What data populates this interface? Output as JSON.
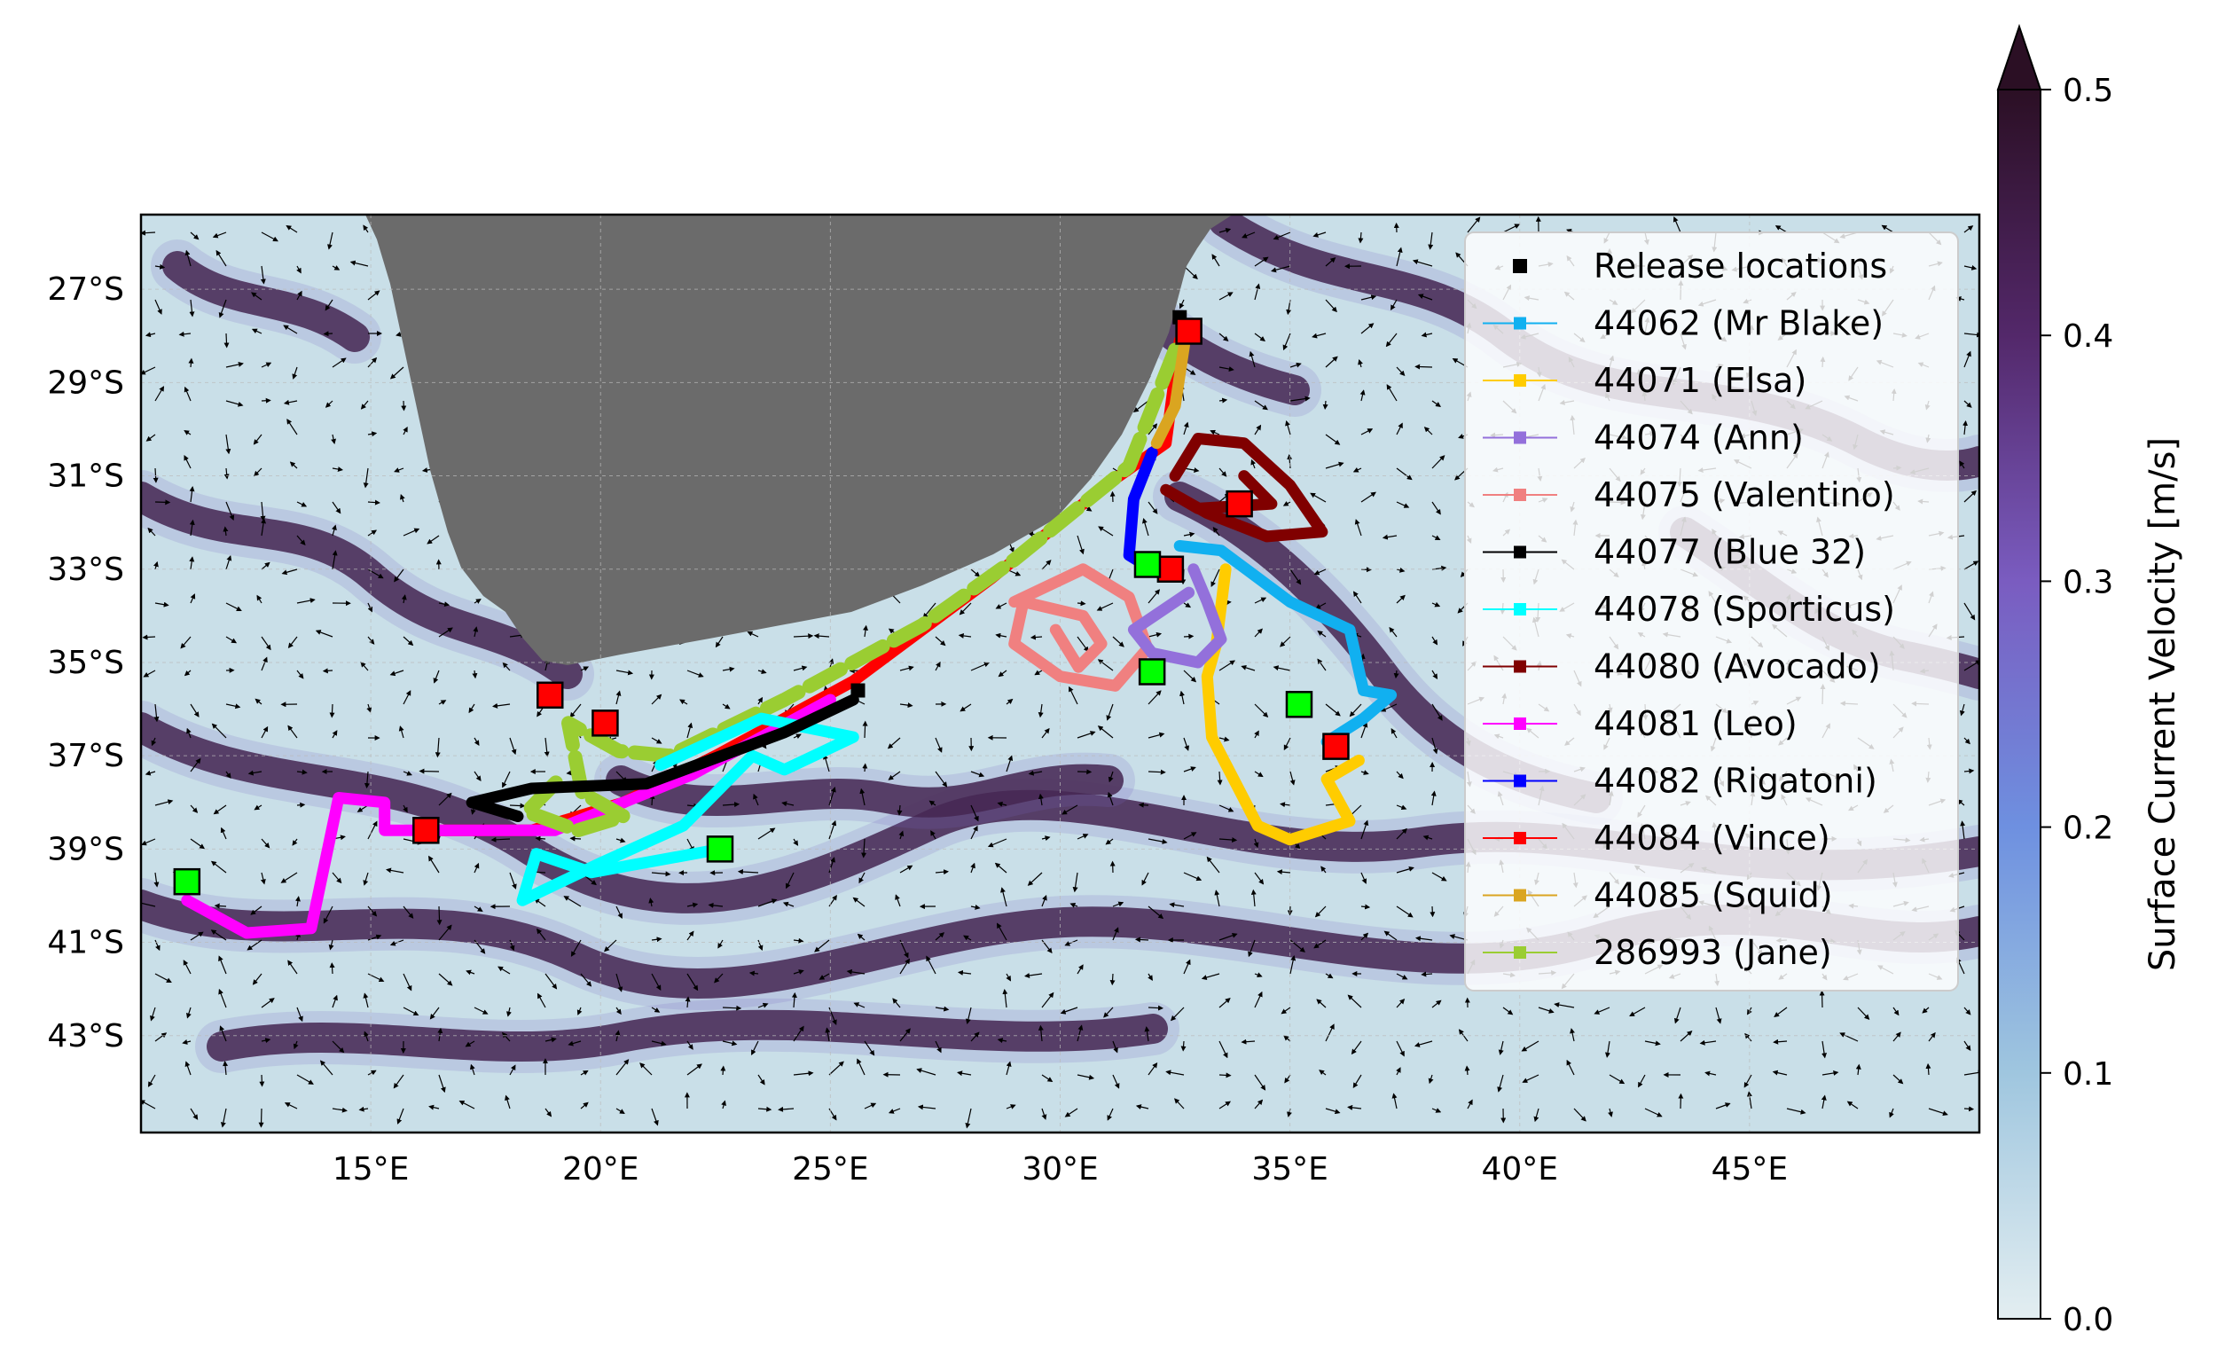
{
  "map": {
    "lon_range": [
      10,
      50
    ],
    "lat_range": [
      -45,
      -25
    ],
    "lon_ticks": [
      "15°E",
      "20°E",
      "25°E",
      "30°E",
      "35°E",
      "40°E",
      "45°E"
    ],
    "lat_ticks": [
      "27°S",
      "29°S",
      "31°S",
      "33°S",
      "35°S",
      "37°S",
      "39°S",
      "41°S",
      "43°S"
    ],
    "land_color": "#6b6b6b",
    "ocean_low_color": "#dbeaf0",
    "ocean_high_color": "#2b0f24",
    "gridlines": true
  },
  "colorbar": {
    "label": "Surface Current Velocity [m/s]",
    "ticks": [
      "0.0",
      "0.1",
      "0.2",
      "0.3",
      "0.4",
      "0.5"
    ],
    "range": [
      0,
      0.5
    ],
    "extend": "max"
  },
  "legend": {
    "placement": "upper-right",
    "items": [
      {
        "label": "Release locations",
        "color": "#000000",
        "kind": "marker"
      },
      {
        "label": "44062 (Mr Blake)",
        "color": "#11b0f0",
        "kind": "line"
      },
      {
        "label": "44071 (Elsa)",
        "color": "#ffcc00",
        "kind": "line"
      },
      {
        "label": "44074 (Ann)",
        "color": "#9370db",
        "kind": "line"
      },
      {
        "label": "44075 (Valentino)",
        "color": "#f08080",
        "kind": "line"
      },
      {
        "label": "44077 (Blue 32)",
        "color": "#000000",
        "kind": "line"
      },
      {
        "label": "44078 (Sporticus)",
        "color": "#00ffff",
        "kind": "line"
      },
      {
        "label": "44080 (Avocado)",
        "color": "#800000",
        "kind": "line"
      },
      {
        "label": "44081 (Leo)",
        "color": "#ff00ff",
        "kind": "line"
      },
      {
        "label": "44082 (Rigatoni)",
        "color": "#0000ff",
        "kind": "line"
      },
      {
        "label": "44084 (Vince)",
        "color": "#ff0000",
        "kind": "line"
      },
      {
        "label": "44085 (Squid)",
        "color": "#daa520",
        "kind": "line"
      },
      {
        "label": "286993 (Jane)",
        "color": "#9acd32",
        "kind": "line"
      }
    ]
  },
  "chart_data": {
    "type": "map",
    "tracks": [
      {
        "name": "44084 (Vince)",
        "color": "#ff0000",
        "points": [
          [
            32.6,
            -28.1
          ],
          [
            32.3,
            -30.3
          ],
          [
            31,
            -31.2
          ],
          [
            28.5,
            -33.2
          ],
          [
            25.5,
            -35.4
          ],
          [
            22.5,
            -37
          ],
          [
            20.5,
            -38
          ],
          [
            18.5,
            -38.6
          ],
          [
            16.2,
            -38.6
          ]
        ]
      },
      {
        "name": "44081 (Leo)",
        "color": "#ff00ff",
        "points": [
          [
            25,
            -35.8
          ],
          [
            22,
            -37.4
          ],
          [
            19,
            -38.6
          ],
          [
            16.5,
            -38.6
          ],
          [
            15.3,
            -38.6
          ],
          [
            15.3,
            -38
          ],
          [
            14.3,
            -37.9
          ],
          [
            13.7,
            -40.7
          ],
          [
            12.3,
            -40.8
          ],
          [
            11,
            -40.1
          ]
        ]
      },
      {
        "name": "286993 (Jane)",
        "color": "#9acd32",
        "points": [
          [
            32.5,
            -28.3
          ],
          [
            31.5,
            -30.8
          ],
          [
            29,
            -32.8
          ],
          [
            27,
            -34.2
          ],
          [
            24,
            -35.8
          ],
          [
            21.5,
            -37
          ],
          [
            20.4,
            -36.9
          ],
          [
            19.3,
            -36.3
          ],
          [
            19.6,
            -37.8
          ],
          [
            20.5,
            -38.3
          ],
          [
            19.5,
            -38.6
          ],
          [
            18.4,
            -38.2
          ],
          [
            19.2,
            -37.4
          ]
        ]
      },
      {
        "name": "44078 (Sporticus)",
        "color": "#00ffff",
        "points": [
          [
            21.3,
            -37.2
          ],
          [
            23.5,
            -36.2
          ],
          [
            25.5,
            -36.6
          ],
          [
            24,
            -37.3
          ],
          [
            23.3,
            -37
          ],
          [
            21.8,
            -38.5
          ],
          [
            20,
            -39.3
          ],
          [
            18.3,
            -40.1
          ],
          [
            18.6,
            -39.1
          ],
          [
            19.8,
            -39.5
          ],
          [
            22.6,
            -39
          ]
        ]
      },
      {
        "name": "44077 (Blue 32)",
        "color": "#000000",
        "points": [
          [
            25.5,
            -35.8
          ],
          [
            24,
            -36.5
          ],
          [
            21,
            -37.6
          ],
          [
            18.5,
            -37.7
          ],
          [
            17.2,
            -38
          ],
          [
            18.2,
            -38.3
          ]
        ]
      },
      {
        "name": "44082 (Rigatoni)",
        "color": "#0000ff",
        "points": [
          [
            32,
            -30.5
          ],
          [
            31.6,
            -31.5
          ],
          [
            31.5,
            -32.7
          ],
          [
            32,
            -33
          ]
        ]
      },
      {
        "name": "44080 (Avocado)",
        "color": "#800000",
        "points": [
          [
            32.5,
            -31
          ],
          [
            33,
            -30.2
          ],
          [
            34,
            -30.3
          ],
          [
            35,
            -31.2
          ],
          [
            35.7,
            -32.2
          ],
          [
            34.5,
            -32.3
          ],
          [
            33.2,
            -31.8
          ],
          [
            32.3,
            -31.3
          ],
          [
            33,
            -31.7
          ],
          [
            34.6,
            -31.6
          ],
          [
            34,
            -31
          ]
        ]
      },
      {
        "name": "44075 (Valentino)",
        "color": "#f08080",
        "points": [
          [
            29,
            -33.7
          ],
          [
            30.5,
            -33
          ],
          [
            31.5,
            -33.6
          ],
          [
            31.9,
            -34.7
          ],
          [
            31.2,
            -35.5
          ],
          [
            30,
            -35.3
          ],
          [
            29,
            -34.6
          ],
          [
            29.2,
            -33.7
          ],
          [
            30.5,
            -34
          ],
          [
            30.9,
            -34.6
          ],
          [
            30.4,
            -35.1
          ],
          [
            29.9,
            -34.3
          ]
        ]
      },
      {
        "name": "44062 (Mr Blake)",
        "color": "#11b0f0",
        "points": [
          [
            32.6,
            -32.5
          ],
          [
            33.5,
            -32.6
          ],
          [
            35,
            -33.7
          ],
          [
            36.3,
            -34.3
          ],
          [
            36.6,
            -35.6
          ],
          [
            37.2,
            -35.7
          ],
          [
            36.6,
            -36.2
          ],
          [
            35.8,
            -36.7
          ],
          [
            36,
            -36.8
          ]
        ]
      },
      {
        "name": "44071 (Elsa)",
        "color": "#ffcc00",
        "points": [
          [
            33.6,
            -33
          ],
          [
            33.4,
            -34.6
          ],
          [
            33.2,
            -35.3
          ],
          [
            33.3,
            -36.6
          ],
          [
            34.3,
            -38.5
          ],
          [
            35,
            -38.8
          ],
          [
            36.3,
            -38.4
          ],
          [
            35.8,
            -37.5
          ],
          [
            36.5,
            -37.1
          ]
        ]
      },
      {
        "name": "44074 (Ann)",
        "color": "#9370db",
        "points": [
          [
            32.9,
            -33
          ],
          [
            33.2,
            -33.7
          ],
          [
            33.5,
            -34.5
          ],
          [
            33,
            -35
          ],
          [
            32,
            -34.8
          ],
          [
            31.6,
            -34.3
          ],
          [
            32.8,
            -33.5
          ]
        ]
      },
      {
        "name": "44085 (Squid)",
        "color": "#daa520",
        "points": [
          [
            32.7,
            -28.2
          ],
          [
            32.5,
            -29.5
          ],
          [
            32.1,
            -30.3
          ]
        ]
      }
    ],
    "release_locations": [
      [
        32.6,
        -27.6
      ],
      [
        25.6,
        -35.6
      ]
    ],
    "end_points_red": [
      [
        32.8,
        -27.9
      ],
      [
        33.9,
        -31.6
      ],
      [
        32.4,
        -33
      ],
      [
        36,
        -36.8
      ],
      [
        20.1,
        -36.3
      ],
      [
        18.9,
        -35.7
      ],
      [
        16.2,
        -38.6
      ]
    ],
    "end_points_green": [
      [
        31.9,
        -32.9
      ],
      [
        32,
        -35.2
      ],
      [
        35.2,
        -35.9
      ],
      [
        22.6,
        -39
      ],
      [
        11,
        -39.7
      ]
    ]
  }
}
